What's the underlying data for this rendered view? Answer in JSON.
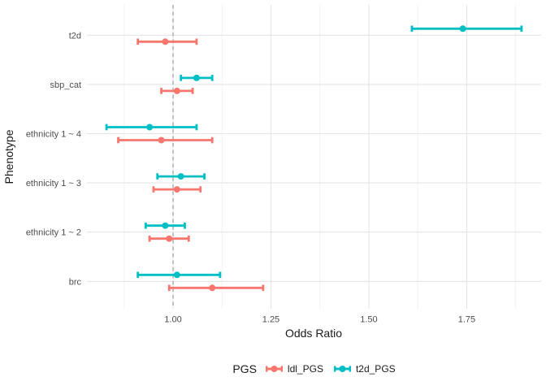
{
  "chart_data": {
    "type": "scatter",
    "subtype": "forest_pointrange_dodged",
    "title": "",
    "xlabel": "Odds Ratio",
    "ylabel": "Phenotype",
    "categories": [
      "t2d",
      "sbp_cat",
      "ethnicity 1 ~ 4",
      "ethnicity 1 ~ 3",
      "ethnicity 1 ~ 2",
      "brc"
    ],
    "series": [
      {
        "name": "ldl_PGS",
        "color": "#F8766D",
        "points": [
          {
            "or": 0.98,
            "lo": 0.91,
            "hi": 1.06
          },
          {
            "or": 1.01,
            "lo": 0.97,
            "hi": 1.05
          },
          {
            "or": 0.97,
            "lo": 0.86,
            "hi": 1.1
          },
          {
            "or": 1.01,
            "lo": 0.95,
            "hi": 1.07
          },
          {
            "or": 0.99,
            "lo": 0.94,
            "hi": 1.04
          },
          {
            "or": 1.1,
            "lo": 0.99,
            "hi": 1.23
          }
        ]
      },
      {
        "name": "t2d_PGS",
        "color": "#00BFC4",
        "points": [
          {
            "or": 1.74,
            "lo": 1.61,
            "hi": 1.89
          },
          {
            "or": 1.06,
            "lo": 1.02,
            "hi": 1.1
          },
          {
            "or": 0.94,
            "lo": 0.83,
            "hi": 1.06
          },
          {
            "or": 1.02,
            "lo": 0.96,
            "hi": 1.08
          },
          {
            "or": 0.98,
            "lo": 0.93,
            "hi": 1.03
          },
          {
            "or": 1.01,
            "lo": 0.91,
            "hi": 1.12
          }
        ]
      }
    ],
    "xlim": [
      0.78,
      1.94
    ],
    "x_ticks": [
      1.0,
      1.25,
      1.5,
      1.75
    ],
    "x_tick_labels": [
      "1.00",
      "1.25",
      "1.50",
      "1.75"
    ],
    "x_minor_gridlines": [
      0.875,
      1.125,
      1.375,
      1.625,
      1.875
    ],
    "reference_line": {
      "x": 1.0,
      "style": "dashed"
    },
    "grid": "on",
    "legend": {
      "title": "PGS",
      "position": "bottom"
    },
    "colors": {
      "background": "#FFFFFF",
      "grid_major": "#E5E5E5",
      "grid_minor": "#F2F2F2",
      "reference_line": "#9B9B9B",
      "tick_text": "#4D4D4D",
      "title_text": "#1A1A1A",
      "ldl_PGS": "#F8766D",
      "t2d_PGS": "#00BFC4"
    }
  }
}
